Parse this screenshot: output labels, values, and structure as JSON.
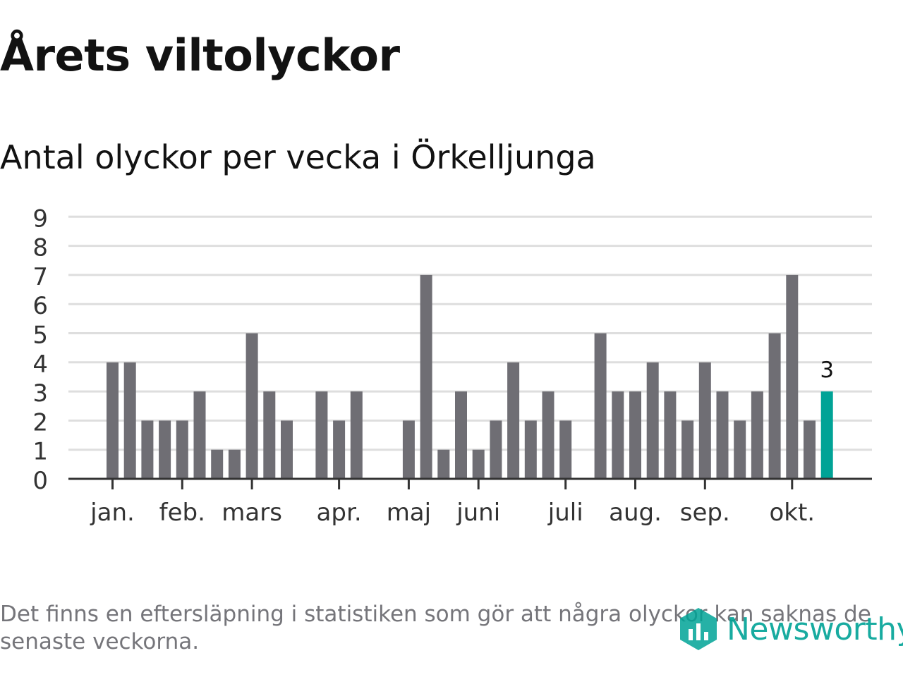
{
  "header": {
    "title": "Årets viltolyckor",
    "subtitle": "Antal olyckor per vecka i Örkelljunga"
  },
  "chart_data": {
    "type": "bar",
    "title": "Årets viltolyckor",
    "subtitle": "Antal olyckor per vecka i Örkelljunga",
    "xlabel": "",
    "ylabel": "",
    "ylim": [
      0,
      9
    ],
    "yticks": [
      0,
      1,
      2,
      3,
      4,
      5,
      6,
      7,
      8,
      9
    ],
    "grid": true,
    "values": [
      4,
      4,
      2,
      2,
      2,
      3,
      1,
      1,
      5,
      3,
      2,
      0,
      3,
      2,
      3,
      0,
      0,
      2,
      7,
      1,
      3,
      1,
      2,
      4,
      2,
      3,
      2,
      0,
      5,
      3,
      3,
      4,
      3,
      2,
      4,
      3,
      2,
      3,
      5,
      7,
      2,
      3
    ],
    "highlight_index": 41,
    "highlight_label": "3",
    "month_labels": [
      {
        "label": "jan.",
        "week_index": 0
      },
      {
        "label": "feb.",
        "week_index": 4
      },
      {
        "label": "mars",
        "week_index": 8
      },
      {
        "label": "apr.",
        "week_index": 13
      },
      {
        "label": "maj",
        "week_index": 17
      },
      {
        "label": "juni",
        "week_index": 21
      },
      {
        "label": "juli",
        "week_index": 26
      },
      {
        "label": "aug.",
        "week_index": 30
      },
      {
        "label": "sep.",
        "week_index": 34
      },
      {
        "label": "okt.",
        "week_index": 39
      }
    ],
    "colors": {
      "bar": "#6f6e74",
      "highlight": "#00a396",
      "grid": "#dedede",
      "axis": "#333333",
      "text": "#333333"
    }
  },
  "footer": {
    "note": "Det finns en eftersläpning i statistiken som gör att några olyckor kan saknas de senaste veckorna.",
    "brand": "Newsworthy",
    "brand_icon": "newsworthy-logo-icon",
    "brand_color": "#00a396"
  }
}
